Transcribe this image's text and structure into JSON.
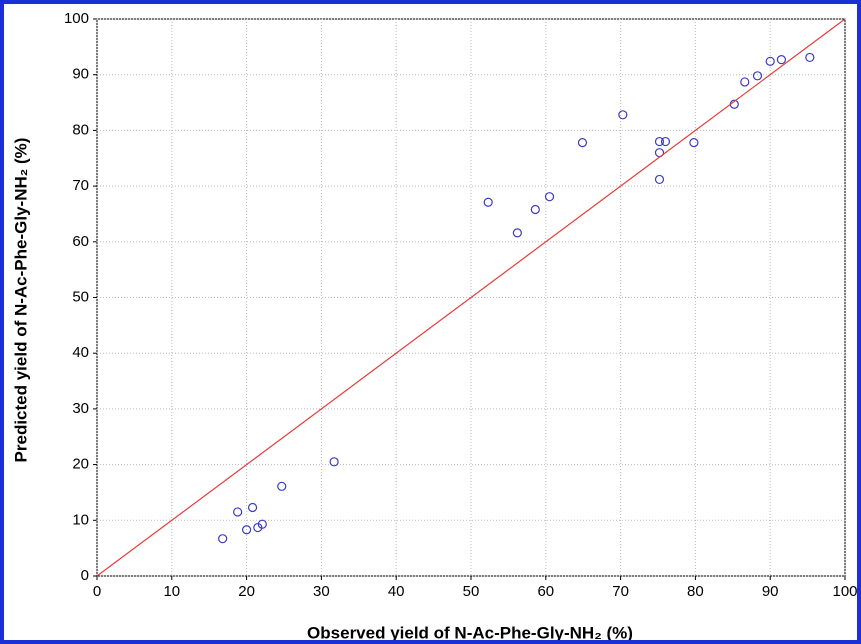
{
  "chart_data": {
    "type": "scatter",
    "x_label": "Observed yield of N-Ac-Phe-Gly-NH₂ (%)",
    "y_label": "Predicted yield of N-Ac-Phe-Gly-NH₂ (%)",
    "xlim": [
      0,
      100
    ],
    "ylim": [
      0,
      100
    ],
    "xticks": [
      0,
      10,
      20,
      30,
      40,
      50,
      60,
      70,
      80,
      90,
      100
    ],
    "yticks": [
      0,
      10,
      20,
      30,
      40,
      50,
      60,
      70,
      80,
      90,
      100
    ],
    "grid": true,
    "series": [
      {
        "color": "#3a3ac8",
        "x": [
          16.8,
          18.8,
          20.0,
          20.8,
          21.5,
          22.1,
          24.7,
          31.7,
          52.3,
          56.2,
          58.6,
          60.5,
          64.9,
          70.3,
          75.2,
          75.2,
          75.2,
          76.0,
          79.8,
          85.2,
          86.6,
          88.3,
          90.0,
          91.5,
          95.3
        ],
        "values": [
          6.7,
          11.5,
          8.3,
          12.3,
          8.7,
          9.3,
          16.1,
          20.5,
          67.1,
          61.6,
          65.8,
          68.1,
          77.8,
          82.8,
          78.0,
          76.0,
          71.2,
          78.0,
          77.8,
          84.7,
          88.7,
          89.8,
          92.4,
          92.7,
          93.1
        ]
      },
      {
        "type": "line",
        "color": "#e83a3a",
        "x": [
          0,
          100
        ],
        "values": [
          0,
          100
        ]
      }
    ]
  }
}
